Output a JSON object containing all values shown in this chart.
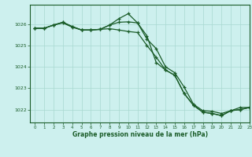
{
  "title": "Graphe pression niveau de la mer (hPa)",
  "background_color": "#cdf0ee",
  "grid_color": "#a8d8d0",
  "line_color": "#1a5c28",
  "xlim": [
    -0.5,
    23
  ],
  "ylim": [
    1021.4,
    1026.9
  ],
  "yticks": [
    1022,
    1023,
    1024,
    1025,
    1026
  ],
  "xticks": [
    0,
    1,
    2,
    3,
    4,
    5,
    6,
    7,
    8,
    9,
    10,
    11,
    12,
    13,
    14,
    15,
    16,
    17,
    18,
    19,
    20,
    21,
    22,
    23
  ],
  "series1": [
    1025.8,
    1025.8,
    1025.95,
    1026.05,
    1025.85,
    1025.72,
    1025.72,
    1025.75,
    1025.95,
    1026.25,
    1026.48,
    1026.05,
    1025.45,
    1024.2,
    1023.85,
    1023.6,
    1022.75,
    1022.2,
    1021.88,
    1021.82,
    1021.72,
    1021.95,
    1022.0,
    1022.1
  ],
  "series2": [
    1025.8,
    1025.8,
    1025.95,
    1026.08,
    1025.88,
    1025.72,
    1025.72,
    1025.75,
    1025.95,
    1026.08,
    1026.1,
    1026.05,
    1025.3,
    1024.85,
    1024.0,
    1023.72,
    1023.05,
    1022.25,
    1021.95,
    1021.92,
    1021.82,
    1021.95,
    1022.1,
    1022.1
  ],
  "series3": [
    1025.8,
    1025.8,
    1025.95,
    1026.08,
    1025.88,
    1025.72,
    1025.72,
    1025.75,
    1025.78,
    1025.72,
    1025.65,
    1025.6,
    1025.0,
    1024.45,
    1023.85,
    1023.6,
    1022.75,
    1022.2,
    1021.88,
    1021.82,
    1021.72,
    1021.95,
    1022.0,
    1022.1
  ]
}
